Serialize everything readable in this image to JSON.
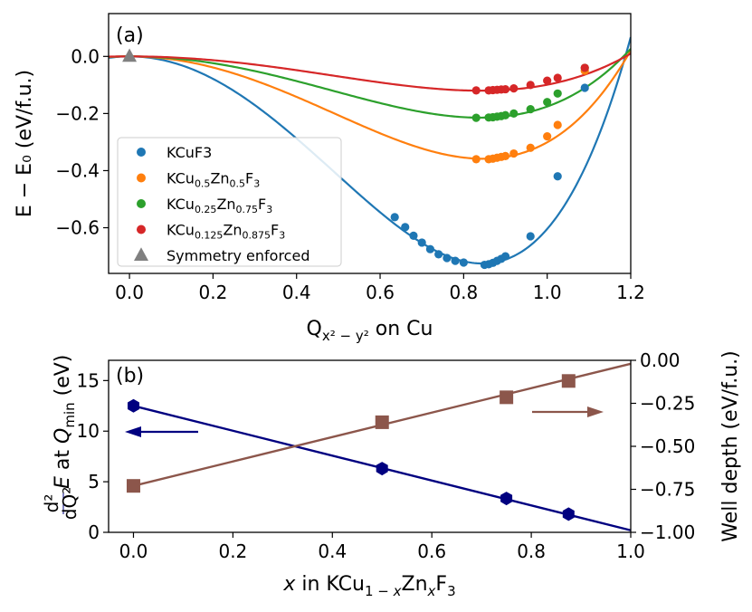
{
  "chart_data": [
    {
      "type": "line",
      "panel_label": "(a)",
      "xlabel_main": "Q",
      "xlabel_sub": "x² − y²",
      "xlabel_rest": " on Cu",
      "ylabel": "E − E₀ (eV/f.u.)",
      "xlim": [
        -0.05,
        1.2
      ],
      "ylim": [
        -0.76,
        0.15
      ],
      "xticks": [
        0.0,
        0.2,
        0.4,
        0.6,
        0.8,
        1.0,
        1.2
      ],
      "xtick_labels": [
        "0.0",
        "0.2",
        "0.4",
        "0.6",
        "0.8",
        "1.0",
        "1.2"
      ],
      "yticks": [
        0.0,
        -0.2,
        -0.4,
        -0.6
      ],
      "ytick_labels": [
        "0.0",
        "−0.2",
        "−0.4",
        "−0.6"
      ],
      "grid": false,
      "legend_position": "lower-left",
      "series": [
        {
          "name": "KCuF3",
          "name_parts": [
            [
              "KCuF3",
              ""
            ]
          ],
          "color": "#1f77b4",
          "curve_shape": {
            "depth": 0.73,
            "q_min": 0.85,
            "quartic_coeff": 0.018
          },
          "points": [
            [
              0.635,
              -0.563
            ],
            [
              0.66,
              -0.598
            ],
            [
              0.68,
              -0.628
            ],
            [
              0.7,
              -0.652
            ],
            [
              0.72,
              -0.675
            ],
            [
              0.74,
              -0.693
            ],
            [
              0.76,
              -0.706
            ],
            [
              0.78,
              -0.716
            ],
            [
              0.8,
              -0.722
            ],
            [
              0.85,
              -0.73
            ],
            [
              0.86,
              -0.728
            ],
            [
              0.87,
              -0.723
            ],
            [
              0.88,
              -0.716
            ],
            [
              0.89,
              -0.709
            ],
            [
              0.9,
              -0.7
            ],
            [
              0.96,
              -0.63
            ],
            [
              1.025,
              -0.42
            ],
            [
              1.09,
              -0.11
            ]
          ]
        },
        {
          "name": "KCu0.5Zn0.5F3",
          "name_parts": [
            [
              "KCu",
              ""
            ],
            [
              "0.5",
              "sub"
            ],
            [
              "Zn",
              ""
            ],
            [
              "0.5",
              "sub"
            ],
            [
              "F",
              ""
            ],
            [
              "3",
              "sub"
            ]
          ],
          "color": "#ff7f0e",
          "curve_shape": {
            "depth": 0.36,
            "q_min": 0.85,
            "quartic_coeff": 0.006
          },
          "points": [
            [
              0.83,
              -0.36
            ],
            [
              0.86,
              -0.36
            ],
            [
              0.87,
              -0.358
            ],
            [
              0.88,
              -0.355
            ],
            [
              0.89,
              -0.352
            ],
            [
              0.9,
              -0.349
            ],
            [
              0.92,
              -0.34
            ],
            [
              0.96,
              -0.32
            ],
            [
              1.0,
              -0.28
            ],
            [
              1.025,
              -0.24
            ],
            [
              1.09,
              -0.05
            ]
          ]
        },
        {
          "name": "KCu0.25Zn0.75F3",
          "name_parts": [
            [
              "KCu",
              ""
            ],
            [
              "0.25",
              "sub"
            ],
            [
              "Zn",
              ""
            ],
            [
              "0.75",
              "sub"
            ],
            [
              "F",
              ""
            ],
            [
              "3",
              "sub"
            ]
          ],
          "color": "#2ca02c",
          "curve_shape": {
            "depth": 0.215,
            "q_min": 0.84,
            "quartic_coeff": 0.002
          },
          "points": [
            [
              0.83,
              -0.215
            ],
            [
              0.86,
              -0.214
            ],
            [
              0.87,
              -0.213
            ],
            [
              0.88,
              -0.211
            ],
            [
              0.89,
              -0.209
            ],
            [
              0.9,
              -0.206
            ],
            [
              0.92,
              -0.2
            ],
            [
              0.96,
              -0.185
            ],
            [
              1.0,
              -0.16
            ],
            [
              1.025,
              -0.13
            ],
            [
              1.09,
              -0.04
            ]
          ]
        },
        {
          "name": "KCu0.125Zn0.875F3",
          "name_parts": [
            [
              "KCu",
              ""
            ],
            [
              "0.125",
              "sub"
            ],
            [
              "Zn",
              ""
            ],
            [
              "0.875",
              "sub"
            ],
            [
              "F",
              ""
            ],
            [
              "3",
              "sub"
            ]
          ],
          "color": "#d62728",
          "curve_shape": {
            "depth": 0.12,
            "q_min": 0.84,
            "quartic_coeff": 0.0
          },
          "points": [
            [
              0.83,
              -0.119
            ],
            [
              0.86,
              -0.119
            ],
            [
              0.87,
              -0.118
            ],
            [
              0.88,
              -0.117
            ],
            [
              0.89,
              -0.116
            ],
            [
              0.9,
              -0.115
            ],
            [
              0.92,
              -0.112
            ],
            [
              0.96,
              -0.1
            ],
            [
              1.0,
              -0.085
            ],
            [
              1.025,
              -0.075
            ],
            [
              1.09,
              -0.04
            ]
          ]
        },
        {
          "name": "Symmetry enforced",
          "name_parts": [
            [
              "Symmetry enforced",
              ""
            ]
          ],
          "color": "#808080",
          "marker": "triangle",
          "points": [
            [
              0.0,
              0.0
            ]
          ]
        }
      ]
    },
    {
      "type": "line",
      "panel_label": "(b)",
      "xlabel_parts": [
        [
          "x",
          "it"
        ],
        [
          " in KCu",
          ""
        ],
        [
          "1 − ",
          "sub"
        ],
        [
          "x",
          "subit"
        ],
        [
          "Zn",
          ""
        ],
        [
          "x",
          "subit"
        ],
        [
          "F",
          ""
        ],
        [
          "3",
          "sub"
        ]
      ],
      "ylabel_left_parts": [
        [
          "E",
          "it"
        ],
        [
          " at ",
          ""
        ],
        [
          "Q",
          "it"
        ],
        [
          "min",
          "sub"
        ],
        [
          " (eV)",
          ""
        ]
      ],
      "ylabel_left_frac_num": "d²",
      "ylabel_left_frac_den": "dQ²",
      "ylabel_right": "Well depth (eV/f.u.)",
      "xlim": [
        -0.05,
        1.0
      ],
      "ylim_left": [
        0,
        17
      ],
      "ylim_right": [
        -1.0,
        0.0
      ],
      "xticks": [
        0.0,
        0.2,
        0.4,
        0.6,
        0.8,
        1.0
      ],
      "xtick_labels": [
        "0.0",
        "0.2",
        "0.4",
        "0.6",
        "0.8",
        "1.0"
      ],
      "yticks_left": [
        0,
        5,
        10,
        15
      ],
      "ytick_left_labels": [
        "0",
        "5",
        "10",
        "15"
      ],
      "yticks_right": [
        0.0,
        -0.25,
        -0.5,
        -0.75,
        -1.0
      ],
      "ytick_right_labels": [
        "0.00",
        "−0.25",
        "−0.50",
        "−0.75",
        "−1.00"
      ],
      "left_color": "#000080",
      "right_color": "#8c564b",
      "grid": false,
      "series": [
        {
          "axis": "left",
          "marker": "hexagon",
          "color": "#000080",
          "x": [
            0.0,
            0.5,
            0.75,
            0.875
          ],
          "y": [
            12.5,
            6.3,
            3.35,
            1.8
          ],
          "fit": [
            [
              0.0,
              12.5
            ],
            [
              1.0,
              0.2
            ]
          ]
        },
        {
          "axis": "right",
          "marker": "square",
          "color": "#8c564b",
          "x": [
            0.0,
            0.5,
            0.75,
            0.875
          ],
          "y": [
            -0.73,
            -0.36,
            -0.215,
            -0.12
          ],
          "fit": [
            [
              0.0,
              -0.73
            ],
            [
              1.0,
              -0.02
            ]
          ]
        }
      ]
    }
  ]
}
